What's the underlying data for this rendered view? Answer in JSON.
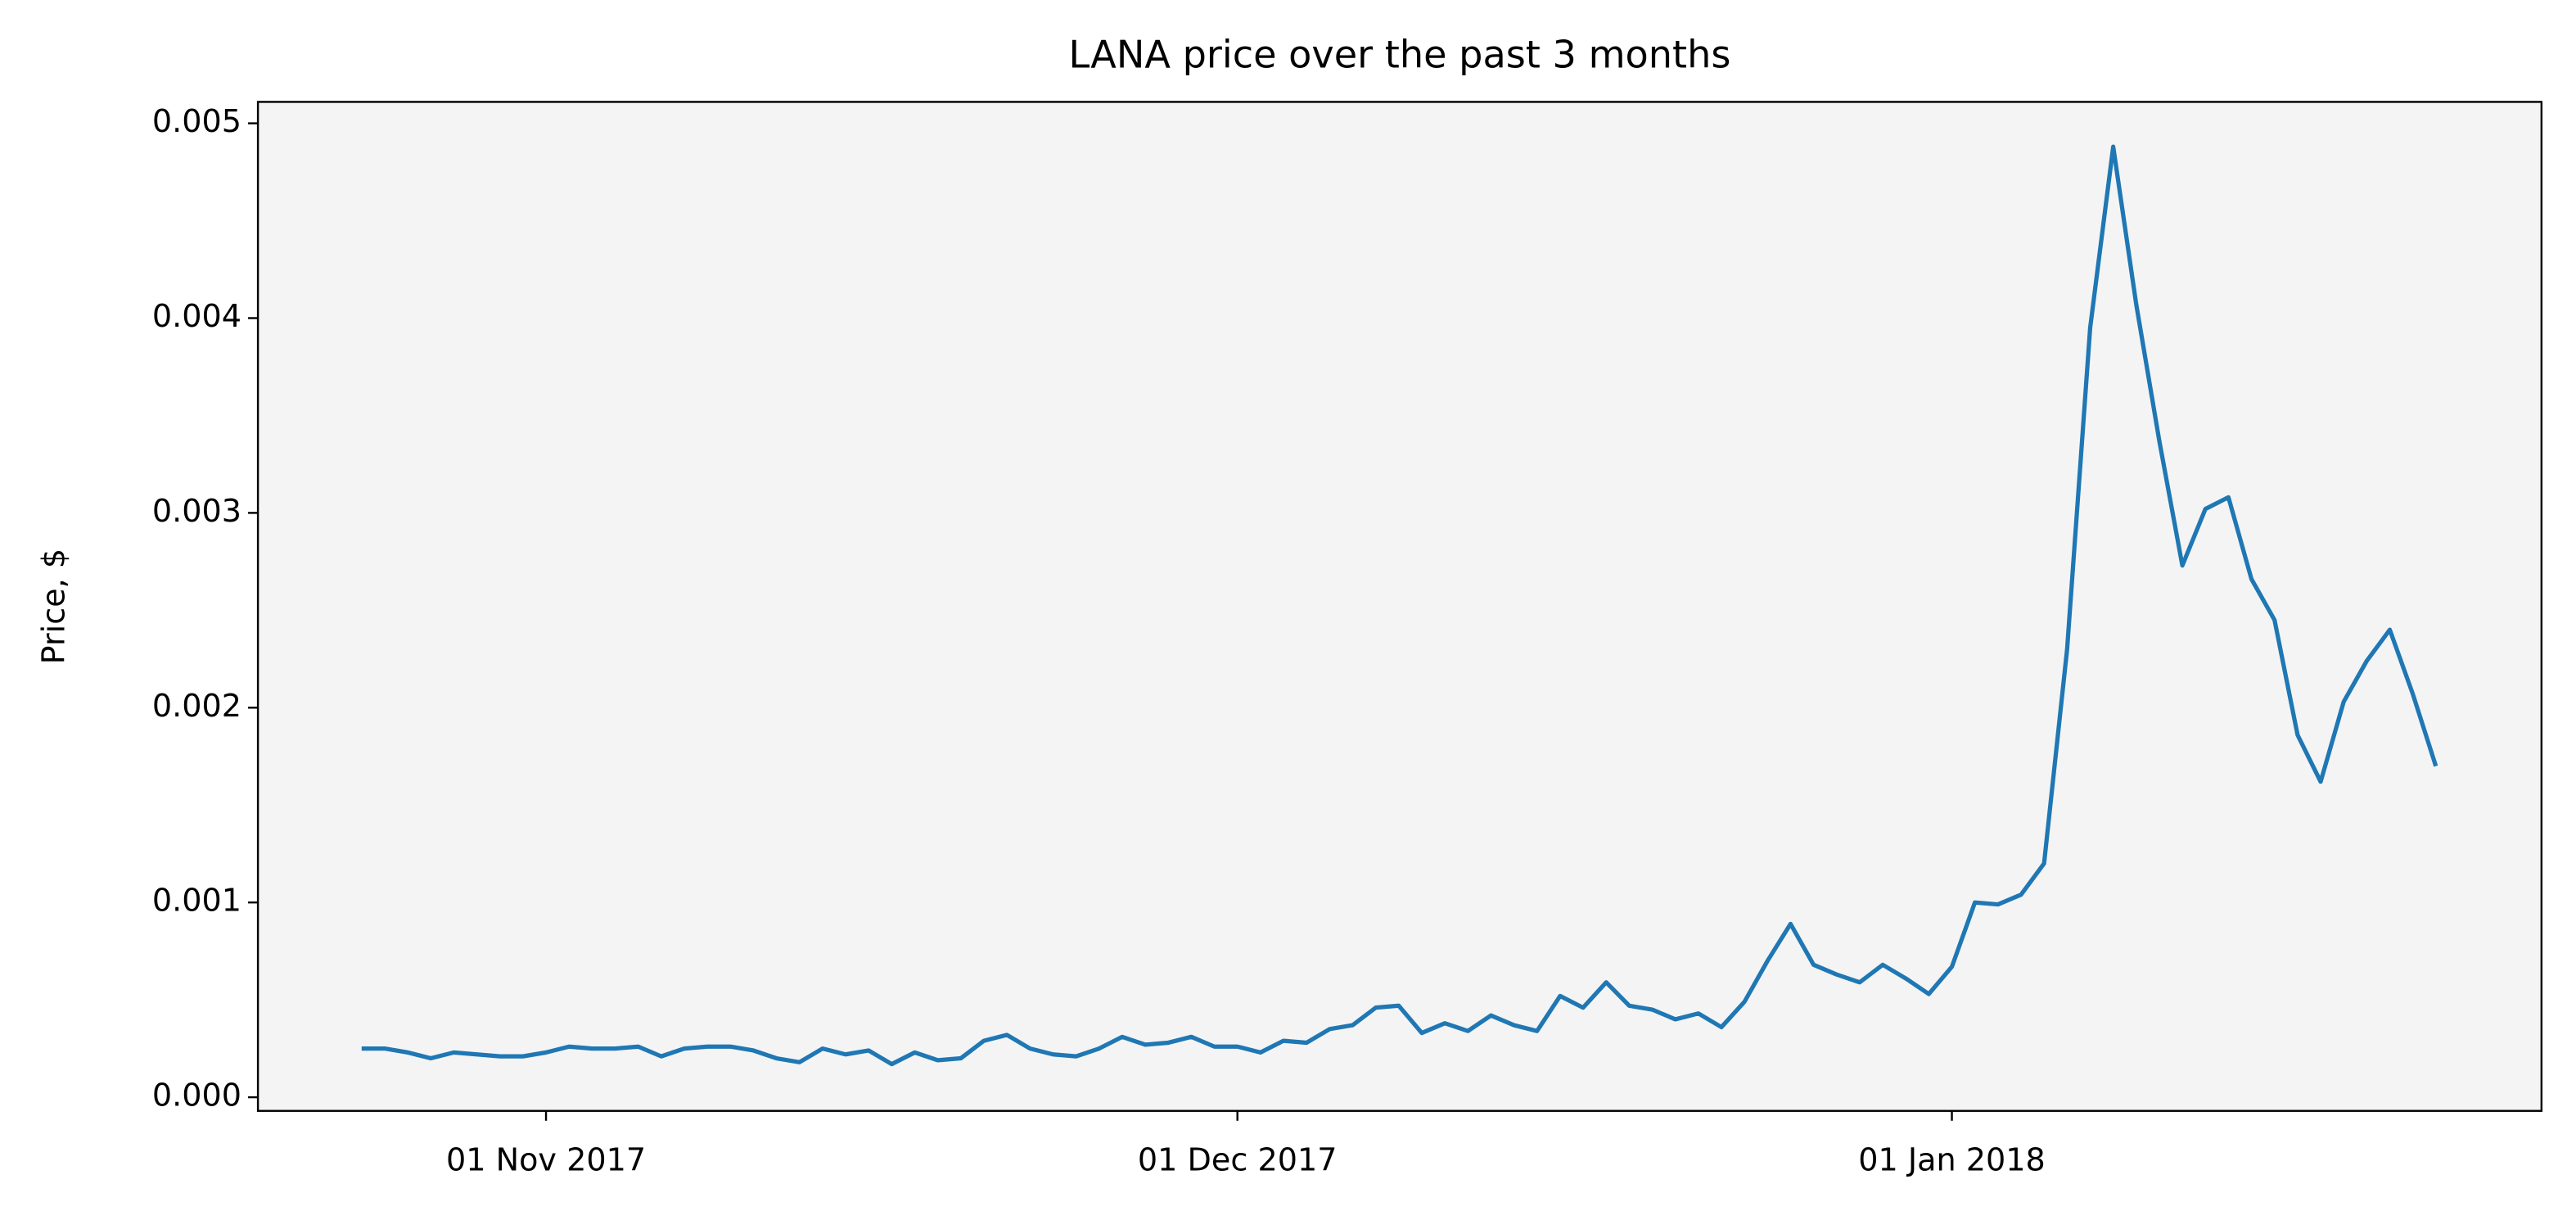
{
  "chart_data": {
    "type": "line",
    "title": "LANA price over the past 3 months",
    "ylabel": "Price, $",
    "x": [
      "2017-10-24",
      "2017-10-25",
      "2017-10-26",
      "2017-10-27",
      "2017-10-28",
      "2017-10-29",
      "2017-10-30",
      "2017-10-31",
      "2017-11-01",
      "2017-11-02",
      "2017-11-03",
      "2017-11-04",
      "2017-11-05",
      "2017-11-06",
      "2017-11-07",
      "2017-11-08",
      "2017-11-09",
      "2017-11-10",
      "2017-11-11",
      "2017-11-12",
      "2017-11-13",
      "2017-11-14",
      "2017-11-15",
      "2017-11-16",
      "2017-11-17",
      "2017-11-18",
      "2017-11-19",
      "2017-11-20",
      "2017-11-21",
      "2017-11-22",
      "2017-11-23",
      "2017-11-24",
      "2017-11-25",
      "2017-11-26",
      "2017-11-27",
      "2017-11-28",
      "2017-11-29",
      "2017-11-30",
      "2017-12-01",
      "2017-12-02",
      "2017-12-03",
      "2017-12-04",
      "2017-12-05",
      "2017-12-06",
      "2017-12-07",
      "2017-12-08",
      "2017-12-09",
      "2017-12-10",
      "2017-12-11",
      "2017-12-12",
      "2017-12-13",
      "2017-12-14",
      "2017-12-15",
      "2017-12-16",
      "2017-12-17",
      "2017-12-18",
      "2017-12-19",
      "2017-12-20",
      "2017-12-21",
      "2017-12-22",
      "2017-12-23",
      "2017-12-24",
      "2017-12-25",
      "2017-12-26",
      "2017-12-27",
      "2017-12-28",
      "2017-12-29",
      "2017-12-30",
      "2017-12-31",
      "2018-01-01",
      "2018-01-02",
      "2018-01-03",
      "2018-01-04",
      "2018-01-05",
      "2018-01-06",
      "2018-01-07",
      "2018-01-08",
      "2018-01-09",
      "2018-01-10",
      "2018-01-11",
      "2018-01-12",
      "2018-01-13",
      "2018-01-14",
      "2018-01-15",
      "2018-01-16",
      "2018-01-17",
      "2018-01-18",
      "2018-01-19",
      "2018-01-20",
      "2018-01-21",
      "2018-01-22"
    ],
    "series": [
      {
        "color": "#1f77b4",
        "values": [
          0.00025,
          0.00025,
          0.00023,
          0.0002,
          0.00023,
          0.00022,
          0.00021,
          0.00021,
          0.00023,
          0.00026,
          0.00025,
          0.00025,
          0.00026,
          0.00021,
          0.00025,
          0.00026,
          0.00026,
          0.00024,
          0.0002,
          0.00018,
          0.00025,
          0.00022,
          0.00024,
          0.00017,
          0.00023,
          0.00019,
          0.0002,
          0.00029,
          0.00032,
          0.00025,
          0.00022,
          0.00021,
          0.00025,
          0.00031,
          0.00027,
          0.00028,
          0.00031,
          0.00026,
          0.00026,
          0.00023,
          0.00029,
          0.00028,
          0.00035,
          0.00037,
          0.00046,
          0.00047,
          0.00033,
          0.00038,
          0.00034,
          0.00042,
          0.00037,
          0.00034,
          0.00052,
          0.00046,
          0.00059,
          0.00047,
          0.00045,
          0.0004,
          0.00043,
          0.00036,
          0.00049,
          0.0007,
          0.00089,
          0.00068,
          0.00063,
          0.00059,
          0.00068,
          0.00061,
          0.00053,
          0.00067,
          0.001,
          0.00099,
          0.00104,
          0.0012,
          0.0023,
          0.00395,
          0.00488,
          0.00407,
          0.00337,
          0.00273,
          0.00302,
          0.00308,
          0.00266,
          0.00245,
          0.00186,
          0.00162,
          0.00203,
          0.00224,
          0.0024,
          0.00207,
          0.0017
        ]
      }
    ],
    "xlim": [
      "2017-10-19T12:00:00Z",
      "2018-01-26T14:00:00Z"
    ],
    "xticks": [
      {
        "value": "2017-11-01",
        "label": "01 Nov 2017"
      },
      {
        "value": "2017-12-01",
        "label": "01 Dec 2017"
      },
      {
        "value": "2018-01-01",
        "label": "01 Jan 2018"
      }
    ],
    "ylim": [
      -7e-05,
      0.00511
    ],
    "yticks": [
      {
        "value": 0,
        "label": "0.000"
      },
      {
        "value": 0.001,
        "label": "0.001"
      },
      {
        "value": 0.002,
        "label": "0.002"
      },
      {
        "value": 0.003,
        "label": "0.003"
      },
      {
        "value": 0.004,
        "label": "0.004"
      },
      {
        "value": 0.005,
        "label": "0.005"
      }
    ],
    "background": "#f4f4f4"
  }
}
